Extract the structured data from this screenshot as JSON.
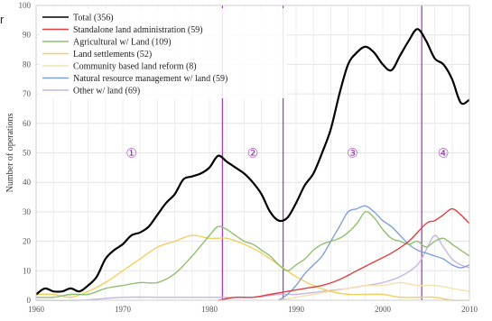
{
  "edge_text": "r",
  "chart_data": {
    "type": "line",
    "ylabel": "Number of operations",
    "xlim": [
      1960,
      2010
    ],
    "ylim": [
      0,
      100
    ],
    "x_ticks": [
      "1960",
      "1970",
      "1980",
      "1990",
      "2000",
      "2010"
    ],
    "y_ticks": [
      "0",
      "10",
      "20",
      "30",
      "40",
      "50",
      "60",
      "70",
      "80",
      "90",
      "100"
    ],
    "grid": true,
    "legend_position": "top-left",
    "period_dividers": [
      1981.5,
      1988.5,
      2004.5
    ],
    "period_labels": [
      {
        "label": "①",
        "x": 1971,
        "y": 50
      },
      {
        "label": "②",
        "x": 1985,
        "y": 50
      },
      {
        "label": "③",
        "x": 1996.5,
        "y": 50
      },
      {
        "label": "④",
        "x": 2007,
        "y": 50
      }
    ],
    "series": [
      {
        "name": "Total (356)",
        "color": "#000000",
        "width": 2.2,
        "x": [
          1960,
          1961,
          1962,
          1963,
          1964,
          1965,
          1966,
          1967,
          1968,
          1969,
          1970,
          1971,
          1972,
          1973,
          1974,
          1975,
          1976,
          1977,
          1978,
          1979,
          1980,
          1981,
          1982,
          1983,
          1984,
          1985,
          1986,
          1987,
          1988,
          1989,
          1990,
          1991,
          1992,
          1993,
          1994,
          1995,
          1996,
          1997,
          1998,
          1999,
          2000,
          2001,
          2002,
          2003,
          2004,
          2005,
          2006,
          2007,
          2008,
          2009,
          2010
        ],
        "y": [
          2,
          4,
          3,
          3,
          4,
          3,
          5,
          8,
          14,
          17,
          19,
          22,
          23,
          25,
          29,
          33,
          36,
          41,
          42,
          43,
          45,
          49,
          47,
          45,
          43,
          40,
          36,
          30,
          27,
          28,
          33,
          39,
          43,
          50,
          58,
          70,
          80,
          84,
          86,
          84,
          80,
          78,
          83,
          88,
          92,
          88,
          82,
          80,
          75,
          67,
          68
        ]
      },
      {
        "name": "Standalone land administration (59)",
        "color": "#e04040",
        "width": 1.4,
        "x": [
          1981,
          1983,
          1985,
          1987,
          1989,
          1991,
          1993,
          1995,
          1997,
          1999,
          2001,
          2003,
          2005,
          2006,
          2007,
          2008,
          2009,
          2010
        ],
        "y": [
          0,
          1,
          1,
          2,
          3,
          4,
          5,
          7,
          10,
          13,
          16,
          20,
          26,
          27,
          29,
          31,
          29,
          26
        ]
      },
      {
        "name": "Agricultural w/ Land (109)",
        "color": "#8fc070",
        "width": 1.4,
        "x": [
          1960,
          1962,
          1964,
          1966,
          1968,
          1970,
          1972,
          1974,
          1976,
          1978,
          1980,
          1981,
          1982,
          1983,
          1984,
          1985,
          1986,
          1987,
          1988,
          1989,
          1990,
          1991,
          1992,
          1993,
          1994,
          1995,
          1996,
          1997,
          1998,
          1999,
          2000,
          2001,
          2002,
          2003,
          2004,
          2005,
          2006,
          2007,
          2008,
          2009,
          2010
        ],
        "y": [
          1,
          1,
          2,
          2,
          4,
          5,
          6,
          6,
          9,
          15,
          22,
          25,
          24,
          22,
          20,
          19,
          17,
          15,
          12,
          10,
          12,
          14,
          17,
          19,
          20,
          21,
          23,
          26,
          30,
          28,
          24,
          21,
          20,
          19,
          20,
          18,
          20,
          21,
          19,
          17,
          15
        ]
      },
      {
        "name": "Land settlements (52)",
        "color": "#f2d060",
        "width": 1.4,
        "x": [
          1960,
          1962,
          1964,
          1966,
          1968,
          1970,
          1972,
          1974,
          1976,
          1978,
          1980,
          1982,
          1984,
          1986,
          1988,
          1990,
          1992,
          1994,
          1996,
          1998,
          2000,
          2002,
          2004,
          2006,
          2008,
          2010
        ],
        "y": [
          2,
          2,
          1,
          3,
          6,
          10,
          14,
          18,
          20,
          22,
          21,
          21,
          19,
          16,
          12,
          8,
          5,
          3,
          2,
          2,
          2,
          1,
          1,
          1,
          0,
          0
        ]
      },
      {
        "name": "Community based land reform (8)",
        "color": "#f3e2ad",
        "width": 1.4,
        "x": [
          1988,
          1990,
          1992,
          1994,
          1996,
          1998,
          2000,
          2002,
          2004,
          2006,
          2008,
          2010
        ],
        "y": [
          0,
          1,
          2,
          3,
          4,
          5,
          5,
          6,
          5,
          5,
          4,
          3
        ]
      },
      {
        "name": "Natural resource management w/ land (59)",
        "color": "#7fa0d8",
        "width": 1.4,
        "x": [
          1988,
          1989,
          1990,
          1991,
          1992,
          1993,
          1994,
          1995,
          1996,
          1997,
          1998,
          1999,
          2000,
          2001,
          2002,
          2003,
          2004,
          2005,
          2006,
          2007,
          2008,
          2009,
          2010
        ],
        "y": [
          0,
          2,
          5,
          9,
          12,
          15,
          20,
          25,
          30,
          31,
          32,
          30,
          27,
          25,
          22,
          19,
          17,
          16,
          15,
          14,
          12,
          11,
          12
        ]
      },
      {
        "name": "Other w/ land (69)",
        "color": "#c6b6e4",
        "width": 1.4,
        "x": [
          1960,
          1965,
          1970,
          1975,
          1980,
          1985,
          1988,
          1990,
          1993,
          1996,
          1998,
          2000,
          2002,
          2004,
          2005,
          2006,
          2007,
          2008,
          2009,
          2010
        ],
        "y": [
          0,
          0,
          1,
          1,
          1,
          1,
          2,
          2,
          3,
          4,
          5,
          6,
          8,
          12,
          17,
          22,
          18,
          14,
          12,
          11
        ]
      }
    ]
  }
}
